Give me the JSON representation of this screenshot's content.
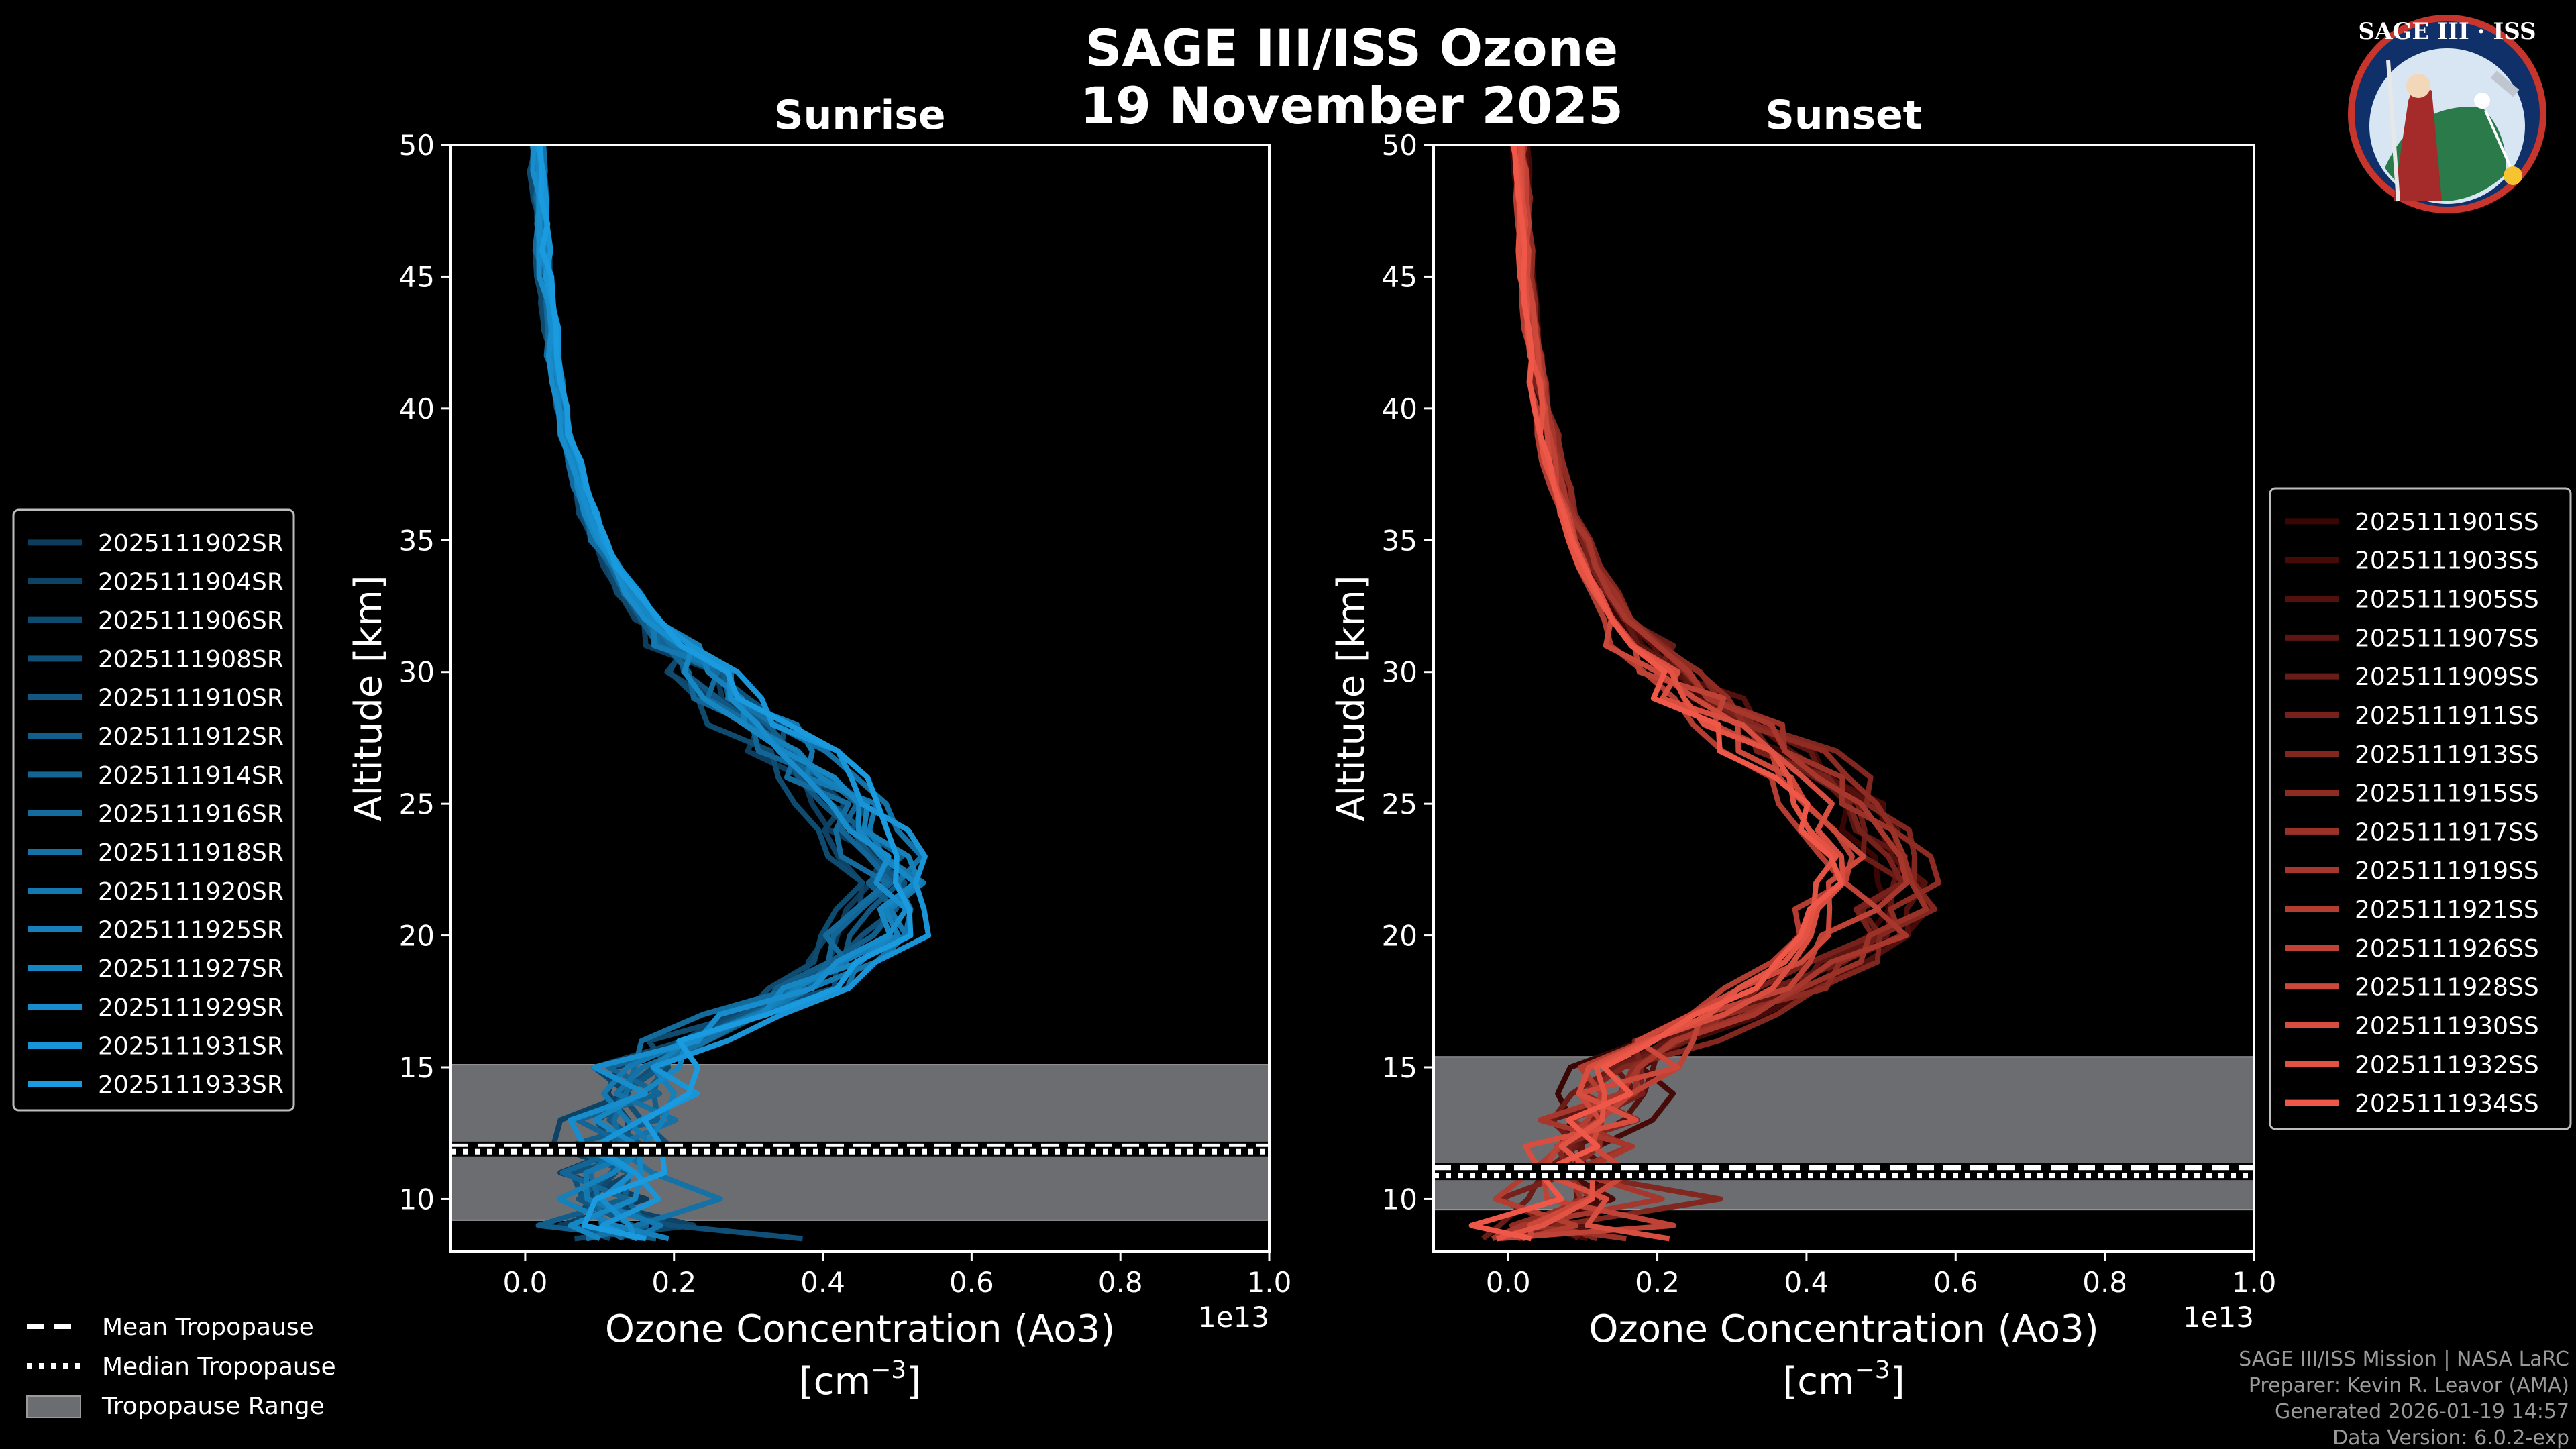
{
  "figure": {
    "title_line1": "SAGE III/ISS Ozone",
    "title_line2": "19 November 2025",
    "exponent_label": "1e13",
    "xlabel_line1": "Ozone Concentration (Ao3)",
    "xlabel_line2": "[cm",
    "xlabel_sup": "−3",
    "xlabel_close": "]",
    "ylabel": "Altitude [km]"
  },
  "badge": {
    "title": "SAGE III · ISS"
  },
  "credits": [
    "SAGE III/ISS Mission | NASA LaRC",
    "Preparer: Kevin R. Leavor (AMA)",
    "Generated 2026-01-19 14:57",
    "Data Version: 6.0.2-exp"
  ],
  "tropopause_legend": [
    {
      "label": "Mean Tropopause",
      "style": "dashed"
    },
    {
      "label": "Median Tropopause",
      "style": "dotted"
    },
    {
      "label": "Tropopause Range",
      "style": "patch"
    }
  ],
  "chart_data": [
    {
      "type": "line",
      "title": "Sunrise",
      "xlabel": "Ozone Concentration (Ao3) [cm^-3]",
      "ylabel": "Altitude [km]",
      "x_scale": "1e13",
      "xlim": [
        -0.1,
        1.0
      ],
      "ylim": [
        8,
        50
      ],
      "xticks": [
        "0.0",
        "0.2",
        "0.4",
        "0.6",
        "0.8",
        "1.0"
      ],
      "yticks": [
        "10",
        "15",
        "20",
        "25",
        "30",
        "35",
        "40",
        "45",
        "50"
      ],
      "tropopause": {
        "range": [
          9.2,
          15.1
        ],
        "mean": 12.0,
        "median": 11.8
      },
      "color_light": "#1a9be0",
      "color_dark": "#0d3c5c",
      "series": [
        {
          "name": "2025111902SR"
        },
        {
          "name": "2025111904SR"
        },
        {
          "name": "2025111906SR"
        },
        {
          "name": "2025111908SR"
        },
        {
          "name": "2025111910SR"
        },
        {
          "name": "2025111912SR"
        },
        {
          "name": "2025111914SR"
        },
        {
          "name": "2025111916SR"
        },
        {
          "name": "2025111918SR"
        },
        {
          "name": "2025111920SR"
        },
        {
          "name": "2025111925SR"
        },
        {
          "name": "2025111927SR"
        },
        {
          "name": "2025111929SR"
        },
        {
          "name": "2025111931SR"
        },
        {
          "name": "2025111933SR"
        }
      ],
      "profile_base": {
        "alt": [
          8.5,
          9,
          10,
          11,
          12,
          13,
          14,
          15,
          16,
          17,
          18,
          19,
          20,
          21,
          22,
          23,
          24,
          25,
          26,
          27,
          28,
          29,
          30,
          31,
          32,
          33,
          34,
          35,
          36,
          37,
          38,
          39,
          40,
          41,
          42,
          43,
          44,
          45,
          46,
          47,
          48,
          49,
          50
        ],
        "o3": [
          0.14,
          0.12,
          0.11,
          0.11,
          0.12,
          0.13,
          0.15,
          0.17,
          0.22,
          0.3,
          0.38,
          0.44,
          0.47,
          0.49,
          0.5,
          0.49,
          0.47,
          0.44,
          0.4,
          0.36,
          0.32,
          0.28,
          0.24,
          0.2,
          0.165,
          0.14,
          0.12,
          0.1,
          0.085,
          0.075,
          0.065,
          0.057,
          0.05,
          0.044,
          0.039,
          0.035,
          0.031,
          0.028,
          0.025,
          0.022,
          0.02,
          0.018,
          0.016
        ]
      },
      "legend_loc": "left"
    },
    {
      "type": "line",
      "title": "Sunset",
      "xlabel": "Ozone Concentration (Ao3) [cm^-3]",
      "ylabel": "Altitude [km]",
      "x_scale": "1e13",
      "xlim": [
        -0.1,
        1.0
      ],
      "ylim": [
        8,
        50
      ],
      "xticks": [
        "0.0",
        "0.2",
        "0.4",
        "0.6",
        "0.8",
        "1.0"
      ],
      "yticks": [
        "10",
        "15",
        "20",
        "25",
        "30",
        "35",
        "40",
        "45",
        "50"
      ],
      "tropopause": {
        "range": [
          9.6,
          15.4
        ],
        "mean": 11.2,
        "median": 10.9
      },
      "color_light": "#ef5848",
      "color_dark": "#3a0604",
      "series": [
        {
          "name": "2025111901SS"
        },
        {
          "name": "2025111903SS"
        },
        {
          "name": "2025111905SS"
        },
        {
          "name": "2025111907SS"
        },
        {
          "name": "2025111909SS"
        },
        {
          "name": "2025111911SS"
        },
        {
          "name": "2025111913SS"
        },
        {
          "name": "2025111915SS"
        },
        {
          "name": "2025111917SS"
        },
        {
          "name": "2025111919SS"
        },
        {
          "name": "2025111921SS"
        },
        {
          "name": "2025111926SS"
        },
        {
          "name": "2025111928SS"
        },
        {
          "name": "2025111930SS"
        },
        {
          "name": "2025111932SS"
        },
        {
          "name": "2025111934SS"
        }
      ],
      "profile_base": {
        "alt": [
          8.5,
          9,
          10,
          11,
          12,
          13,
          14,
          15,
          16,
          17,
          18,
          19,
          20,
          21,
          22,
          23,
          24,
          25,
          26,
          27,
          28,
          29,
          30,
          31,
          32,
          33,
          34,
          35,
          36,
          37,
          38,
          39,
          40,
          41,
          42,
          43,
          44,
          45,
          46,
          47,
          48,
          49,
          50
        ],
        "o3": [
          0.03,
          0.05,
          0.07,
          0.09,
          0.1,
          0.11,
          0.13,
          0.16,
          0.21,
          0.28,
          0.36,
          0.43,
          0.47,
          0.49,
          0.5,
          0.49,
          0.47,
          0.44,
          0.4,
          0.36,
          0.31,
          0.26,
          0.22,
          0.18,
          0.15,
          0.13,
          0.11,
          0.095,
          0.08,
          0.07,
          0.06,
          0.053,
          0.047,
          0.042,
          0.037,
          0.033,
          0.029,
          0.026,
          0.023,
          0.021,
          0.019,
          0.017,
          0.015
        ]
      },
      "legend_loc": "right"
    }
  ]
}
